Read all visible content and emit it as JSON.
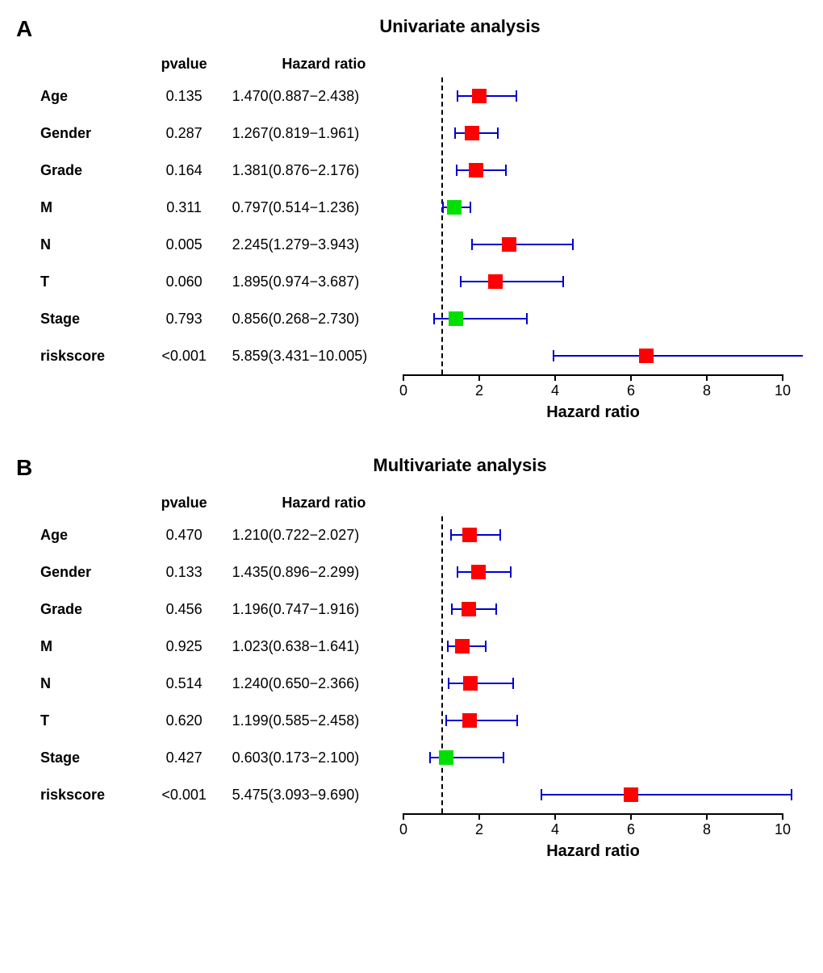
{
  "panels": [
    {
      "letter": "A",
      "title": "Univariate analysis",
      "headers": {
        "pvalue": "pvalue",
        "hr": "Hazard ratio"
      },
      "axis": {
        "min": 0,
        "max": 10,
        "ticks": [
          0,
          2,
          4,
          6,
          8,
          10
        ],
        "ref": 1,
        "title": "Hazard ratio"
      },
      "colors": {
        "ci": "#0000cd",
        "point_gt1": "#ff0000",
        "point_lt1": "#00e000",
        "axis": "#000000"
      },
      "rows": [
        {
          "var": "Age",
          "pvalue": "0.135",
          "hr_text": "1.470(0.887−2.438)",
          "hr": 1.47,
          "lo": 0.887,
          "hi": 2.438
        },
        {
          "var": "Gender",
          "pvalue": "0.287",
          "hr_text": "1.267(0.819−1.961)",
          "hr": 1.267,
          "lo": 0.819,
          "hi": 1.961
        },
        {
          "var": "Grade",
          "pvalue": "0.164",
          "hr_text": "1.381(0.876−2.176)",
          "hr": 1.381,
          "lo": 0.876,
          "hi": 2.176
        },
        {
          "var": "M",
          "pvalue": "0.311",
          "hr_text": "0.797(0.514−1.236)",
          "hr": 0.797,
          "lo": 0.514,
          "hi": 1.236
        },
        {
          "var": "N",
          "pvalue": "0.005",
          "hr_text": "2.245(1.279−3.943)",
          "hr": 2.245,
          "lo": 1.279,
          "hi": 3.943
        },
        {
          "var": "T",
          "pvalue": "0.060",
          "hr_text": "1.895(0.974−3.687)",
          "hr": 1.895,
          "lo": 0.974,
          "hi": 3.687
        },
        {
          "var": "Stage",
          "pvalue": "0.793",
          "hr_text": "0.856(0.268−2.730)",
          "hr": 0.856,
          "lo": 0.268,
          "hi": 2.73
        },
        {
          "var": "riskscore",
          "pvalue": "<0.001",
          "hr_text": "5.859(3.431−10.005)",
          "hr": 5.859,
          "lo": 3.431,
          "hi": 10.005
        }
      ]
    },
    {
      "letter": "B",
      "title": "Multivariate analysis",
      "headers": {
        "pvalue": "pvalue",
        "hr": "Hazard ratio"
      },
      "axis": {
        "min": 0,
        "max": 10,
        "ticks": [
          0,
          2,
          4,
          6,
          8,
          10
        ],
        "ref": 1,
        "title": "Hazard ratio"
      },
      "colors": {
        "ci": "#0000cd",
        "point_gt1": "#ff0000",
        "point_lt1": "#00e000",
        "axis": "#000000"
      },
      "rows": [
        {
          "var": "Age",
          "pvalue": "0.470",
          "hr_text": "1.210(0.722−2.027)",
          "hr": 1.21,
          "lo": 0.722,
          "hi": 2.027
        },
        {
          "var": "Gender",
          "pvalue": "0.133",
          "hr_text": "1.435(0.896−2.299)",
          "hr": 1.435,
          "lo": 0.896,
          "hi": 2.299
        },
        {
          "var": "Grade",
          "pvalue": "0.456",
          "hr_text": "1.196(0.747−1.916)",
          "hr": 1.196,
          "lo": 0.747,
          "hi": 1.916
        },
        {
          "var": "M",
          "pvalue": "0.925",
          "hr_text": "1.023(0.638−1.641)",
          "hr": 1.023,
          "lo": 0.638,
          "hi": 1.641
        },
        {
          "var": "N",
          "pvalue": "0.514",
          "hr_text": "1.240(0.650−2.366)",
          "hr": 1.24,
          "lo": 0.65,
          "hi": 2.366
        },
        {
          "var": "T",
          "pvalue": "0.620",
          "hr_text": "1.199(0.585−2.458)",
          "hr": 1.199,
          "lo": 0.585,
          "hi": 2.458
        },
        {
          "var": "Stage",
          "pvalue": "0.427",
          "hr_text": "0.603(0.173−2.100)",
          "hr": 0.603,
          "lo": 0.173,
          "hi": 2.1
        },
        {
          "var": "riskscore",
          "pvalue": "<0.001",
          "hr_text": "5.475(3.093−9.690)",
          "hr": 5.475,
          "lo": 3.093,
          "hi": 9.69
        }
      ]
    }
  ]
}
